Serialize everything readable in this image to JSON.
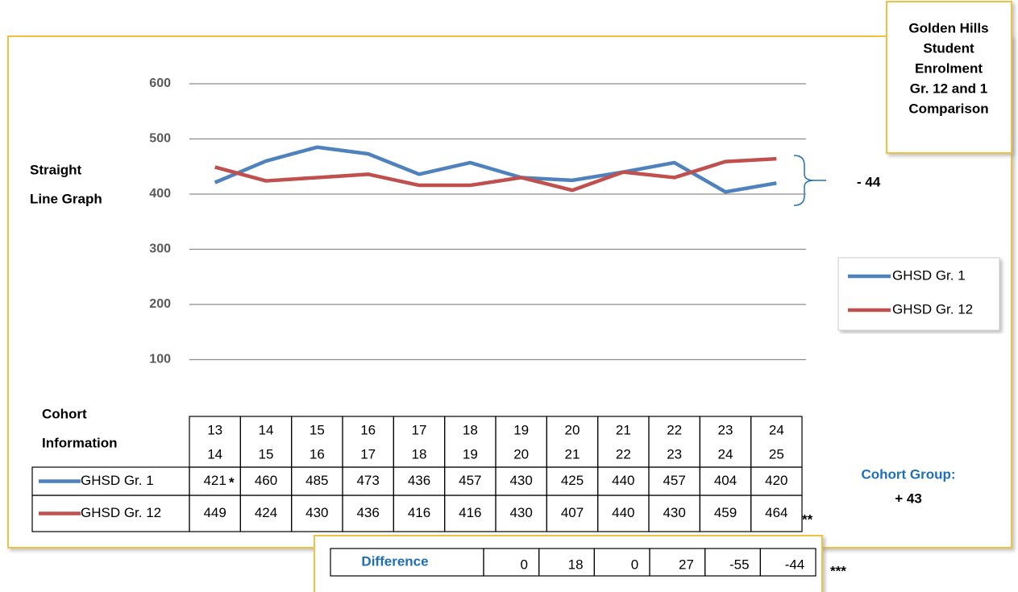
{
  "chart_data": {
    "type": "line",
    "title": [
      "Golden Hills",
      "Student",
      "Enrolment",
      "Gr. 12 and 1",
      "Comparison"
    ],
    "y_label": [
      "Straight",
      "Line Graph"
    ],
    "categories": [
      [
        "13",
        "14"
      ],
      [
        "14",
        "15"
      ],
      [
        "15",
        "16"
      ],
      [
        "16",
        "17"
      ],
      [
        "17",
        "18"
      ],
      [
        "18",
        "19"
      ],
      [
        "19",
        "20"
      ],
      [
        "20",
        "21"
      ],
      [
        "21",
        "22"
      ],
      [
        "22",
        "23"
      ],
      [
        "23",
        "24"
      ],
      [
        "24",
        "25"
      ]
    ],
    "series": [
      {
        "name": "GHSD Gr. 1",
        "color": "#4f81bd",
        "values": [
          421,
          460,
          485,
          473,
          436,
          457,
          430,
          425,
          440,
          457,
          404,
          420
        ]
      },
      {
        "name": "GHSD Gr. 12",
        "color": "#c0504d",
        "values": [
          449,
          424,
          430,
          436,
          416,
          416,
          430,
          407,
          440,
          430,
          459,
          464
        ]
      }
    ],
    "ylim": [
      0,
      600
    ],
    "yticks": [
      100,
      200,
      300,
      400,
      500,
      600
    ],
    "grid": true,
    "legend": "right",
    "annotations": {
      "bracket_label": "- 44",
      "table_title": [
        "Cohort",
        "Information"
      ],
      "cohort_group": "Cohort Group:",
      "cohort_group_value": "+ 43",
      "marks": [
        "*",
        "**",
        "***"
      ]
    },
    "difference": {
      "label": "Difference",
      "values": [
        0,
        18,
        0,
        27,
        -55,
        -44
      ]
    }
  }
}
